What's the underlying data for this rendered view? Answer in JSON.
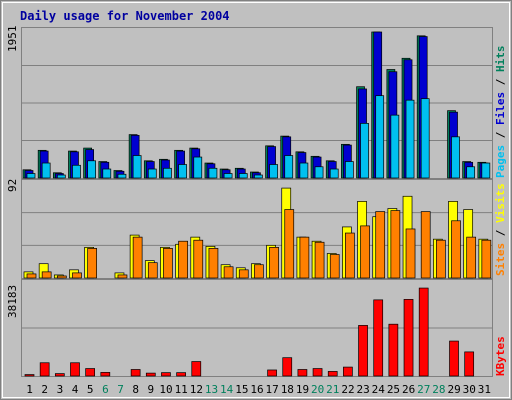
{
  "title": "Daily usage for November 2004",
  "colors": {
    "background": "#c0c0c0",
    "plot": "#c0c0c0",
    "title": "#0000a0",
    "hits": "#00805c",
    "files": "#0000d0",
    "pages": "#00c0f0",
    "visits": "#ffff00",
    "sites": "#ff8000",
    "kbytes": "#ff0000",
    "weekend_day": "#00805c",
    "weekday": "#000000"
  },
  "chart_data": [
    {
      "type": "bar",
      "panel": "hits-files-pages",
      "ymax_label": "1951",
      "ylim": [
        0,
        1951
      ],
      "legend": [
        "Pages",
        "Files",
        "Hits"
      ],
      "categories": [
        "1",
        "2",
        "3",
        "4",
        "5",
        "6",
        "7",
        "8",
        "9",
        "10",
        "11",
        "12",
        "13",
        "14",
        "15",
        "16",
        "17",
        "18",
        "19",
        "20",
        "21",
        "22",
        "23",
        "24",
        "25",
        "26",
        "27",
        "28",
        "29",
        "30",
        "31"
      ],
      "series": [
        {
          "name": "Hits",
          "values": [
            110,
            370,
            70,
            360,
            400,
            220,
            100,
            580,
            230,
            250,
            370,
            400,
            200,
            120,
            130,
            80,
            430,
            560,
            350,
            290,
            230,
            450,
            1220,
            1951,
            1450,
            1600,
            1900,
            0,
            900,
            220,
            210
          ]
        },
        {
          "name": "Files",
          "values": [
            100,
            360,
            60,
            350,
            380,
            210,
            90,
            570,
            220,
            240,
            360,
            390,
            190,
            110,
            120,
            70,
            420,
            550,
            340,
            280,
            220,
            440,
            1190,
            1951,
            1420,
            1580,
            1890,
            0,
            880,
            210,
            200
          ]
        },
        {
          "name": "Pages",
          "values": [
            60,
            200,
            40,
            170,
            230,
            120,
            50,
            300,
            120,
            130,
            180,
            280,
            130,
            60,
            60,
            40,
            180,
            300,
            200,
            150,
            120,
            220,
            730,
            1100,
            840,
            1040,
            1060,
            0,
            550,
            150,
            200
          ]
        }
      ]
    },
    {
      "type": "bar",
      "panel": "visits-sites",
      "ymax_label": "92",
      "ylim": [
        0,
        92
      ],
      "legend": [
        "Sites",
        "Visits"
      ],
      "categories": [
        "1",
        "2",
        "3",
        "4",
        "5",
        "6",
        "7",
        "8",
        "9",
        "10",
        "11",
        "12",
        "13",
        "14",
        "15",
        "16",
        "17",
        "18",
        "19",
        "20",
        "21",
        "22",
        "23",
        "24",
        "25",
        "26",
        "27",
        "28",
        "29",
        "30",
        "31"
      ],
      "series": [
        {
          "name": "Visits",
          "values": [
            6,
            14,
            3,
            8,
            30,
            0,
            5,
            42,
            17,
            30,
            33,
            40,
            31,
            13,
            10,
            14,
            32,
            88,
            40,
            36,
            24,
            50,
            75,
            60,
            68,
            80,
            0,
            38,
            75,
            67,
            38
          ]
        },
        {
          "name": "Sites",
          "values": [
            4,
            6,
            2,
            5,
            29,
            0,
            3,
            40,
            15,
            29,
            36,
            37,
            29,
            11,
            8,
            13,
            30,
            67,
            40,
            35,
            23,
            44,
            51,
            65,
            66,
            48,
            65,
            37,
            56,
            40,
            37
          ]
        }
      ]
    },
    {
      "type": "bar",
      "panel": "kbytes",
      "ymax_label": "38183",
      "ylim": [
        0,
        38183
      ],
      "legend": [
        "KBytes"
      ],
      "categories": [
        "1",
        "2",
        "3",
        "4",
        "5",
        "6",
        "7",
        "8",
        "9",
        "10",
        "11",
        "12",
        "13",
        "14",
        "15",
        "16",
        "17",
        "18",
        "19",
        "20",
        "21",
        "22",
        "23",
        "24",
        "25",
        "26",
        "27",
        "28",
        "29",
        "30",
        "31"
      ],
      "series": [
        {
          "name": "KBytes",
          "values": [
            600,
            5500,
            1000,
            5500,
            3100,
            1500,
            0,
            2700,
            1200,
            1400,
            1400,
            6000,
            0,
            0,
            0,
            0,
            2500,
            7600,
            2700,
            3100,
            1900,
            3700,
            21000,
            31600,
            21500,
            31800,
            36500,
            0,
            14500,
            10000,
            0
          ]
        }
      ]
    }
  ],
  "weekend_days": [
    6,
    7,
    13,
    14,
    20,
    21,
    27,
    28
  ]
}
